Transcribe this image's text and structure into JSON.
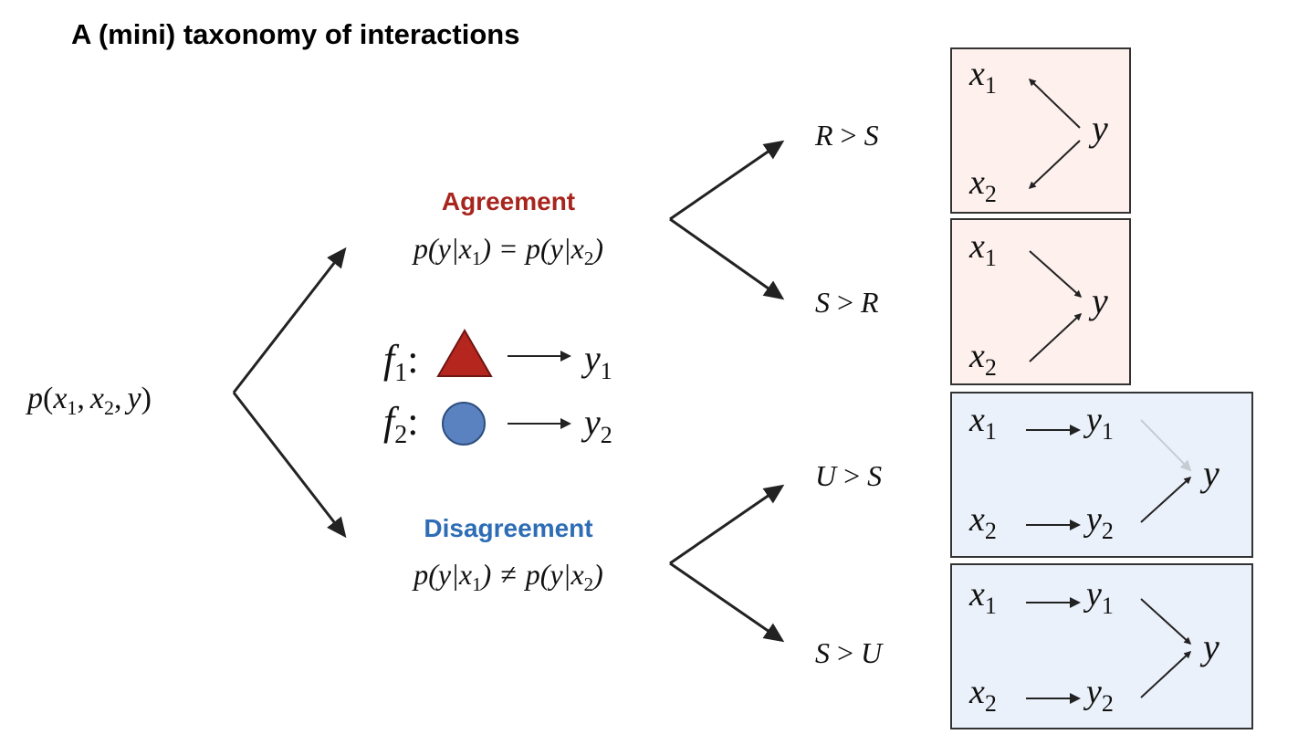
{
  "title": "A (mini) taxonomy of interactions",
  "root": {
    "p": "p",
    "open": "(",
    "x1": "x",
    "x1sub": "1",
    "comma": ",",
    "x2": "x",
    "x2sub": "2",
    "y": "y",
    "close": ")"
  },
  "agreement": {
    "heading": "Agreement",
    "heading_color": "#a8251e",
    "lhs": "p(y|x",
    "lhs_sub": "1",
    "lhs_close": ")",
    "rel": "=",
    "rhs": "p(y|x",
    "rhs_sub": "2",
    "rhs_close": ")"
  },
  "disagreement": {
    "heading": "Disagreement",
    "heading_color": "#2e6db5",
    "lhs": "p(y|x",
    "lhs_sub": "1",
    "lhs_close": ")",
    "rel": "≠",
    "rhs": "p(y|x",
    "rhs_sub": "2",
    "rhs_close": ")"
  },
  "functions": [
    {
      "f": "f",
      "sub": "1",
      "colon": ":",
      "shape": "triangle",
      "color": "#b5261e",
      "out": "y",
      "out_sub": "1"
    },
    {
      "f": "f",
      "sub": "2",
      "colon": ":",
      "shape": "circle",
      "color": "#5a82c0",
      "out": "y",
      "out_sub": "2"
    }
  ],
  "cases": [
    {
      "left": "R",
      "op": ">",
      "right": "S",
      "box_color": "#fdf0ed"
    },
    {
      "left": "S",
      "op": ">",
      "right": "R",
      "box_color": "#fdf0ed"
    },
    {
      "left": "U",
      "op": ">",
      "right": "S",
      "box_color": "#ebf1fa"
    },
    {
      "left": "S",
      "op": ">",
      "right": "U",
      "box_color": "#ebf1fa"
    }
  ],
  "nodes": {
    "x": "x",
    "y": "y",
    "one": "1",
    "two": "2"
  },
  "colors": {
    "faded_arrow": "#c5ccd2",
    "arrow": "#222222"
  }
}
